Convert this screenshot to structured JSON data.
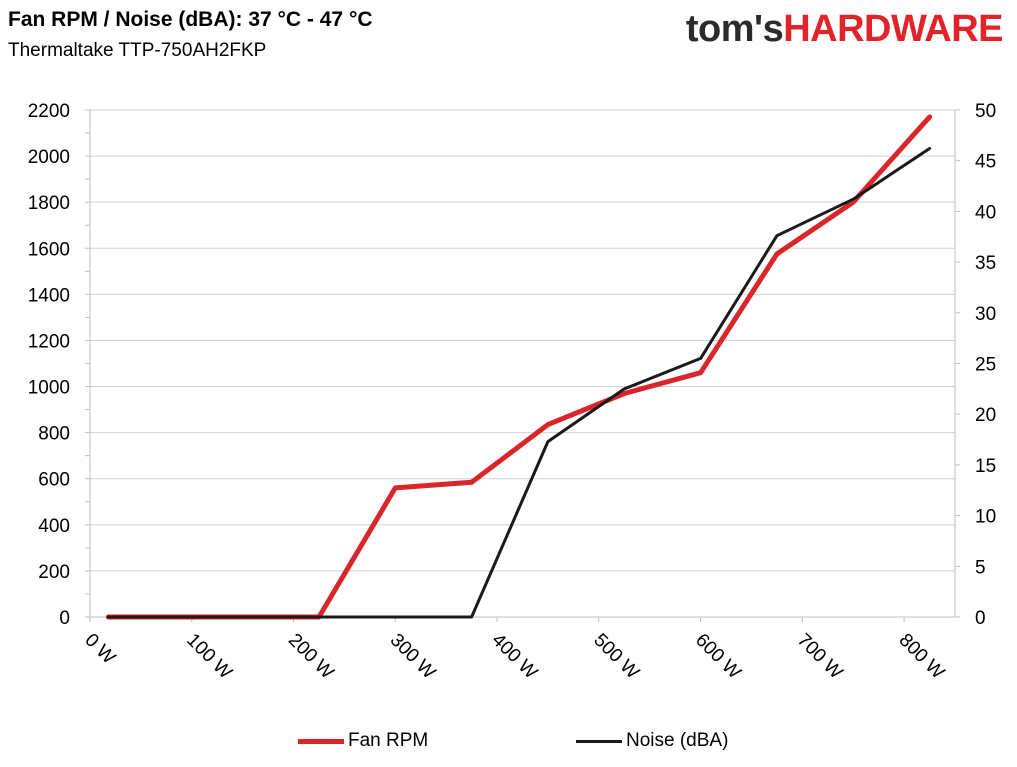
{
  "chart_data": {
    "type": "line",
    "title": "Fan RPM / Noise (dBA): 37 °C - 47 °C",
    "subtitle": "Thermaltake TTP-750AH2FKP",
    "x_tick_labels": [
      "0 W",
      "100 W",
      "200 W",
      "300 W",
      "400 W",
      "500 W",
      "600 W",
      "700 W",
      "800 W"
    ],
    "xlim": [
      0,
      850
    ],
    "y_left": {
      "ticks": [
        0,
        200,
        400,
        600,
        800,
        1000,
        1200,
        1400,
        1600,
        1800,
        2000,
        2200
      ],
      "ylim": [
        0,
        2200
      ]
    },
    "y_right": {
      "ticks": [
        0,
        5,
        10,
        15,
        20,
        25,
        30,
        35,
        40,
        45,
        50
      ],
      "ylim": [
        0,
        50
      ]
    },
    "series": [
      {
        "name": "Fan RPM",
        "axis": "left",
        "color": "#d9262a",
        "x": [
          18,
          225,
          300,
          375,
          450,
          525,
          600,
          675,
          750,
          825
        ],
        "values": [
          0,
          0,
          560,
          585,
          835,
          970,
          1060,
          1575,
          1800,
          2170
        ]
      },
      {
        "name": "Noise (dBA)",
        "axis": "right",
        "color": "#1a1a1a",
        "x": [
          18,
          375,
          450,
          525,
          600,
          675,
          750,
          825
        ],
        "values": [
          0,
          0,
          17.3,
          22.5,
          25.5,
          37.6,
          41.2,
          46.2
        ]
      }
    ],
    "legend": [
      "Fan RPM",
      "Noise (dBA)"
    ]
  },
  "logo": {
    "part1": "tom's",
    "part2": "HARDWARE"
  }
}
